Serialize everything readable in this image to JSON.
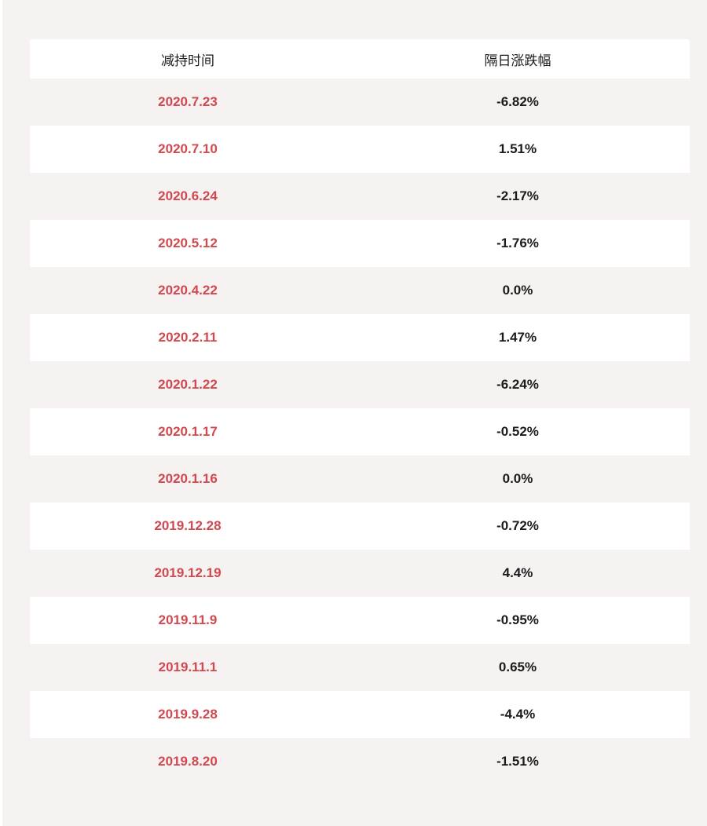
{
  "colors": {
    "page_background": "#f7f2f2",
    "row_alt_background": "#ffffff",
    "date_text": "#d0494f",
    "value_text": "#1b1b1b"
  },
  "chart_data": {
    "type": "table",
    "columns": [
      "减持时间",
      "隔日涨跌幅"
    ],
    "rows": [
      [
        "2020.7.23",
        "-6.82%"
      ],
      [
        "2020.7.10",
        "1.51%"
      ],
      [
        "2020.6.24",
        "-2.17%"
      ],
      [
        "2020.5.12",
        "-1.76%"
      ],
      [
        "2020.4.22",
        "0.0%"
      ],
      [
        "2020.2.11",
        "1.47%"
      ],
      [
        "2020.1.22",
        "-6.24%"
      ],
      [
        "2020.1.17",
        "-0.52%"
      ],
      [
        "2020.1.16",
        "0.0%"
      ],
      [
        "2019.12.28",
        "-0.72%"
      ],
      [
        "2019.12.19",
        "4.4%"
      ],
      [
        "2019.11.9",
        "-0.95%"
      ],
      [
        "2019.11.1",
        "0.65%"
      ],
      [
        "2019.9.28",
        "-4.4%"
      ],
      [
        "2019.8.20",
        "-1.51%"
      ]
    ]
  }
}
